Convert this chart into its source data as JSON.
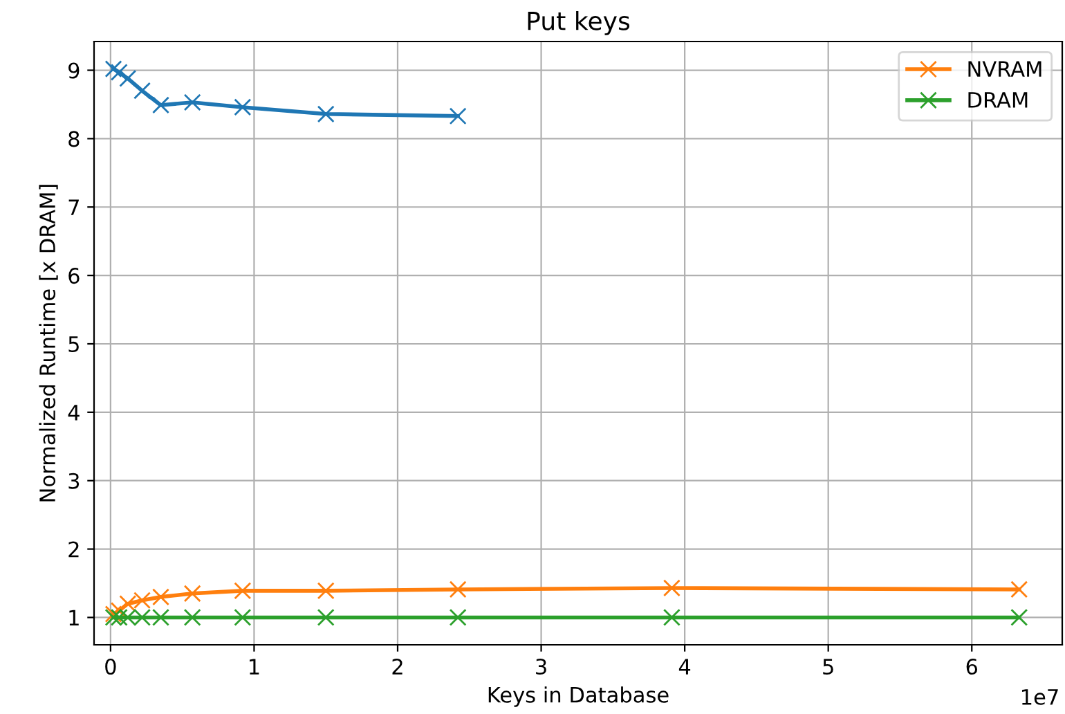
{
  "chart_data": {
    "type": "line",
    "title": "Put keys",
    "xlabel": "Keys in Database",
    "ylabel": "Normalized Runtime [x DRAM]",
    "annotations": [
      "1e7"
    ],
    "x": [
      0.02,
      0.06,
      0.12,
      0.22,
      0.35,
      0.57,
      0.92,
      1.5,
      2.42,
      3.91,
      6.33
    ],
    "series": [
      {
        "color": "#1f77b4",
        "values": [
          9.02,
          8.97,
          8.88,
          8.7,
          8.49,
          8.53,
          8.46,
          8.36,
          8.33,
          null,
          null
        ]
      },
      {
        "name": "NVRAM",
        "color": "#ff7f0e",
        "values": [
          1.05,
          1.1,
          1.2,
          1.25,
          1.3,
          1.35,
          1.39,
          1.39,
          1.41,
          1.43,
          1.41
        ]
      },
      {
        "name": "DRAM",
        "color": "#2ca02c",
        "values": [
          1.0,
          1.0,
          1.0,
          1.0,
          1.0,
          1.0,
          1.0,
          1.0,
          1.0,
          1.0,
          1.0
        ]
      }
    ],
    "xlim": [
      -0.115,
      6.63
    ],
    "ylim": [
      0.6,
      9.42
    ],
    "xticks": [
      0,
      1,
      2,
      3,
      4,
      5,
      6
    ],
    "yticks": [
      1,
      2,
      3,
      4,
      5,
      6,
      7,
      8,
      9
    ],
    "grid": true,
    "legend": "top right",
    "marker": "cross",
    "line_style": "solid"
  }
}
